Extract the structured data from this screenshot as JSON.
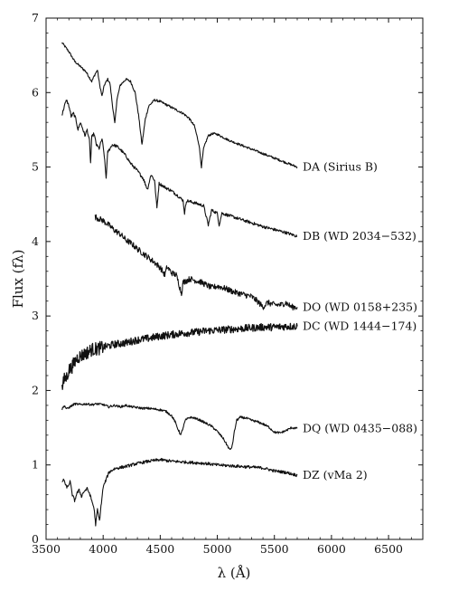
{
  "chart_data": {
    "type": "line",
    "xlabel": "λ (Å)",
    "ylabel": "Flux (fλ)",
    "xlim": [
      3500,
      6800
    ],
    "ylim": [
      0,
      7
    ],
    "x_ticks": [
      3500,
      4000,
      4500,
      5000,
      5500,
      6000,
      6500
    ],
    "y_ticks": [
      0,
      1,
      2,
      3,
      4,
      5,
      6,
      7
    ],
    "grid": false,
    "legend": "none (labels at right end of each spectrum)",
    "series": [
      {
        "name": "DA (Sirius B)",
        "points": [
          [
            3640,
            6.67
          ],
          [
            3700,
            6.55
          ],
          [
            3750,
            6.42
          ],
          [
            3800,
            6.35
          ],
          [
            3850,
            6.28
          ],
          [
            3880,
            6.2
          ],
          [
            3900,
            6.15
          ],
          [
            3930,
            6.25
          ],
          [
            3950,
            6.3
          ],
          [
            3970,
            6.1
          ],
          [
            3990,
            5.95
          ],
          [
            4010,
            6.1
          ],
          [
            4040,
            6.18
          ],
          [
            4060,
            6.12
          ],
          [
            4080,
            5.85
          ],
          [
            4102,
            5.58
          ],
          [
            4120,
            5.9
          ],
          [
            4150,
            6.1
          ],
          [
            4200,
            6.18
          ],
          [
            4240,
            6.15
          ],
          [
            4280,
            6.0
          ],
          [
            4310,
            5.7
          ],
          [
            4340,
            5.3
          ],
          [
            4370,
            5.65
          ],
          [
            4400,
            5.82
          ],
          [
            4450,
            5.9
          ],
          [
            4500,
            5.88
          ],
          [
            4550,
            5.84
          ],
          [
            4600,
            5.8
          ],
          [
            4650,
            5.76
          ],
          [
            4700,
            5.72
          ],
          [
            4750,
            5.66
          ],
          [
            4800,
            5.55
          ],
          [
            4840,
            5.3
          ],
          [
            4861,
            5.0
          ],
          [
            4880,
            5.25
          ],
          [
            4920,
            5.42
          ],
          [
            4960,
            5.45
          ],
          [
            5000,
            5.44
          ],
          [
            5100,
            5.36
          ],
          [
            5200,
            5.3
          ],
          [
            5300,
            5.24
          ],
          [
            5400,
            5.18
          ],
          [
            5500,
            5.12
          ],
          [
            5600,
            5.06
          ],
          [
            5700,
            5.0
          ]
        ]
      },
      {
        "name": "DB (WD 2034−532)",
        "points": [
          [
            3640,
            5.7
          ],
          [
            3660,
            5.82
          ],
          [
            3680,
            5.9
          ],
          [
            3700,
            5.82
          ],
          [
            3720,
            5.68
          ],
          [
            3740,
            5.72
          ],
          [
            3760,
            5.65
          ],
          [
            3780,
            5.5
          ],
          [
            3800,
            5.6
          ],
          [
            3820,
            5.52
          ],
          [
            3840,
            5.42
          ],
          [
            3860,
            5.5
          ],
          [
            3880,
            5.35
          ],
          [
            3890,
            5.05
          ],
          [
            3900,
            5.4
          ],
          [
            3920,
            5.45
          ],
          [
            3940,
            5.3
          ],
          [
            3965,
            5.25
          ],
          [
            3990,
            5.38
          ],
          [
            4010,
            5.15
          ],
          [
            4026,
            4.85
          ],
          [
            4040,
            5.2
          ],
          [
            4080,
            5.3
          ],
          [
            4120,
            5.28
          ],
          [
            4160,
            5.22
          ],
          [
            4200,
            5.15
          ],
          [
            4240,
            5.05
          ],
          [
            4300,
            4.95
          ],
          [
            4350,
            4.85
          ],
          [
            4388,
            4.7
          ],
          [
            4420,
            4.9
          ],
          [
            4450,
            4.82
          ],
          [
            4471,
            4.45
          ],
          [
            4490,
            4.78
          ],
          [
            4550,
            4.72
          ],
          [
            4600,
            4.68
          ],
          [
            4650,
            4.62
          ],
          [
            4700,
            4.55
          ],
          [
            4713,
            4.38
          ],
          [
            4730,
            4.55
          ],
          [
            4800,
            4.52
          ],
          [
            4880,
            4.48
          ],
          [
            4921,
            4.22
          ],
          [
            4950,
            4.42
          ],
          [
            5000,
            4.38
          ],
          [
            5016,
            4.22
          ],
          [
            5040,
            4.38
          ],
          [
            5100,
            4.35
          ],
          [
            5200,
            4.3
          ],
          [
            5300,
            4.25
          ],
          [
            5400,
            4.2
          ],
          [
            5500,
            4.16
          ],
          [
            5600,
            4.12
          ],
          [
            5700,
            4.07
          ]
        ]
      },
      {
        "name": "DO (WD 0158+235)",
        "points": [
          [
            3930,
            4.33
          ],
          [
            4000,
            4.28
          ],
          [
            4050,
            4.22
          ],
          [
            4100,
            4.15
          ],
          [
            4150,
            4.1
          ],
          [
            4200,
            4.02
          ],
          [
            4250,
            3.97
          ],
          [
            4300,
            3.9
          ],
          [
            4350,
            3.84
          ],
          [
            4400,
            3.78
          ],
          [
            4450,
            3.72
          ],
          [
            4500,
            3.65
          ],
          [
            4540,
            3.55
          ],
          [
            4560,
            3.66
          ],
          [
            4600,
            3.58
          ],
          [
            4640,
            3.55
          ],
          [
            4660,
            3.45
          ],
          [
            4686,
            3.3
          ],
          [
            4700,
            3.45
          ],
          [
            4760,
            3.5
          ],
          [
            4800,
            3.48
          ],
          [
            4850,
            3.46
          ],
          [
            4900,
            3.42
          ],
          [
            4950,
            3.38
          ],
          [
            5000,
            3.4
          ],
          [
            5050,
            3.38
          ],
          [
            5100,
            3.35
          ],
          [
            5150,
            3.32
          ],
          [
            5200,
            3.3
          ],
          [
            5250,
            3.28
          ],
          [
            5300,
            3.26
          ],
          [
            5350,
            3.2
          ],
          [
            5400,
            3.12
          ],
          [
            5440,
            3.18
          ],
          [
            5500,
            3.15
          ],
          [
            5560,
            3.15
          ],
          [
            5600,
            3.18
          ],
          [
            5650,
            3.12
          ],
          [
            5700,
            3.12
          ]
        ]
      },
      {
        "name": "DC (WD 1444−174)",
        "points": [
          [
            3640,
            2.03
          ],
          [
            3660,
            2.15
          ],
          [
            3680,
            2.18
          ],
          [
            3700,
            2.28
          ],
          [
            3720,
            2.3
          ],
          [
            3750,
            2.38
          ],
          [
            3780,
            2.45
          ],
          [
            3800,
            2.46
          ],
          [
            3850,
            2.5
          ],
          [
            3900,
            2.55
          ],
          [
            3950,
            2.56
          ],
          [
            4000,
            2.58
          ],
          [
            4100,
            2.62
          ],
          [
            4200,
            2.64
          ],
          [
            4300,
            2.68
          ],
          [
            4400,
            2.7
          ],
          [
            4500,
            2.73
          ],
          [
            4600,
            2.75
          ],
          [
            4700,
            2.77
          ],
          [
            4800,
            2.78
          ],
          [
            4900,
            2.8
          ],
          [
            5000,
            2.81
          ],
          [
            5100,
            2.82
          ],
          [
            5200,
            2.83
          ],
          [
            5300,
            2.84
          ],
          [
            5400,
            2.85
          ],
          [
            5500,
            2.85
          ],
          [
            5600,
            2.86
          ],
          [
            5700,
            2.86
          ]
        ]
      },
      {
        "name": "DQ (WD 0435−088)",
        "points": [
          [
            3640,
            1.75
          ],
          [
            3660,
            1.8
          ],
          [
            3680,
            1.75
          ],
          [
            3700,
            1.77
          ],
          [
            3750,
            1.82
          ],
          [
            3800,
            1.81
          ],
          [
            3850,
            1.82
          ],
          [
            3900,
            1.81
          ],
          [
            3950,
            1.82
          ],
          [
            4000,
            1.81
          ],
          [
            4050,
            1.78
          ],
          [
            4100,
            1.8
          ],
          [
            4150,
            1.78
          ],
          [
            4200,
            1.8
          ],
          [
            4250,
            1.78
          ],
          [
            4300,
            1.77
          ],
          [
            4350,
            1.76
          ],
          [
            4400,
            1.76
          ],
          [
            4450,
            1.75
          ],
          [
            4500,
            1.74
          ],
          [
            4550,
            1.72
          ],
          [
            4600,
            1.66
          ],
          [
            4630,
            1.58
          ],
          [
            4650,
            1.5
          ],
          [
            4680,
            1.4
          ],
          [
            4700,
            1.5
          ],
          [
            4720,
            1.6
          ],
          [
            4760,
            1.64
          ],
          [
            4800,
            1.63
          ],
          [
            4850,
            1.6
          ],
          [
            4900,
            1.56
          ],
          [
            4950,
            1.52
          ],
          [
            5000,
            1.45
          ],
          [
            5050,
            1.36
          ],
          [
            5080,
            1.28
          ],
          [
            5110,
            1.2
          ],
          [
            5130,
            1.25
          ],
          [
            5150,
            1.45
          ],
          [
            5170,
            1.6
          ],
          [
            5200,
            1.64
          ],
          [
            5250,
            1.63
          ],
          [
            5300,
            1.6
          ],
          [
            5350,
            1.58
          ],
          [
            5400,
            1.55
          ],
          [
            5450,
            1.51
          ],
          [
            5500,
            1.44
          ],
          [
            5550,
            1.43
          ],
          [
            5600,
            1.46
          ],
          [
            5650,
            1.5
          ],
          [
            5700,
            1.49
          ]
        ]
      },
      {
        "name": "DZ (vMa 2)",
        "points": [
          [
            3640,
            0.78
          ],
          [
            3660,
            0.8
          ],
          [
            3670,
            0.72
          ],
          [
            3690,
            0.7
          ],
          [
            3710,
            0.78
          ],
          [
            3730,
            0.6
          ],
          [
            3750,
            0.52
          ],
          [
            3770,
            0.62
          ],
          [
            3790,
            0.66
          ],
          [
            3810,
            0.58
          ],
          [
            3830,
            0.64
          ],
          [
            3860,
            0.68
          ],
          [
            3880,
            0.62
          ],
          [
            3900,
            0.52
          ],
          [
            3920,
            0.42
          ],
          [
            3934,
            0.2
          ],
          [
            3950,
            0.4
          ],
          [
            3968,
            0.25
          ],
          [
            3985,
            0.5
          ],
          [
            4000,
            0.7
          ],
          [
            4050,
            0.9
          ],
          [
            4100,
            0.95
          ],
          [
            4200,
            0.98
          ],
          [
            4300,
            1.02
          ],
          [
            4400,
            1.05
          ],
          [
            4500,
            1.07
          ],
          [
            4600,
            1.05
          ],
          [
            4700,
            1.04
          ],
          [
            4800,
            1.03
          ],
          [
            4900,
            1.02
          ],
          [
            5000,
            1.0
          ],
          [
            5100,
            0.99
          ],
          [
            5200,
            0.98
          ],
          [
            5300,
            0.97
          ],
          [
            5400,
            0.96
          ],
          [
            5500,
            0.92
          ],
          [
            5600,
            0.9
          ],
          [
            5700,
            0.86
          ]
        ]
      }
    ]
  }
}
